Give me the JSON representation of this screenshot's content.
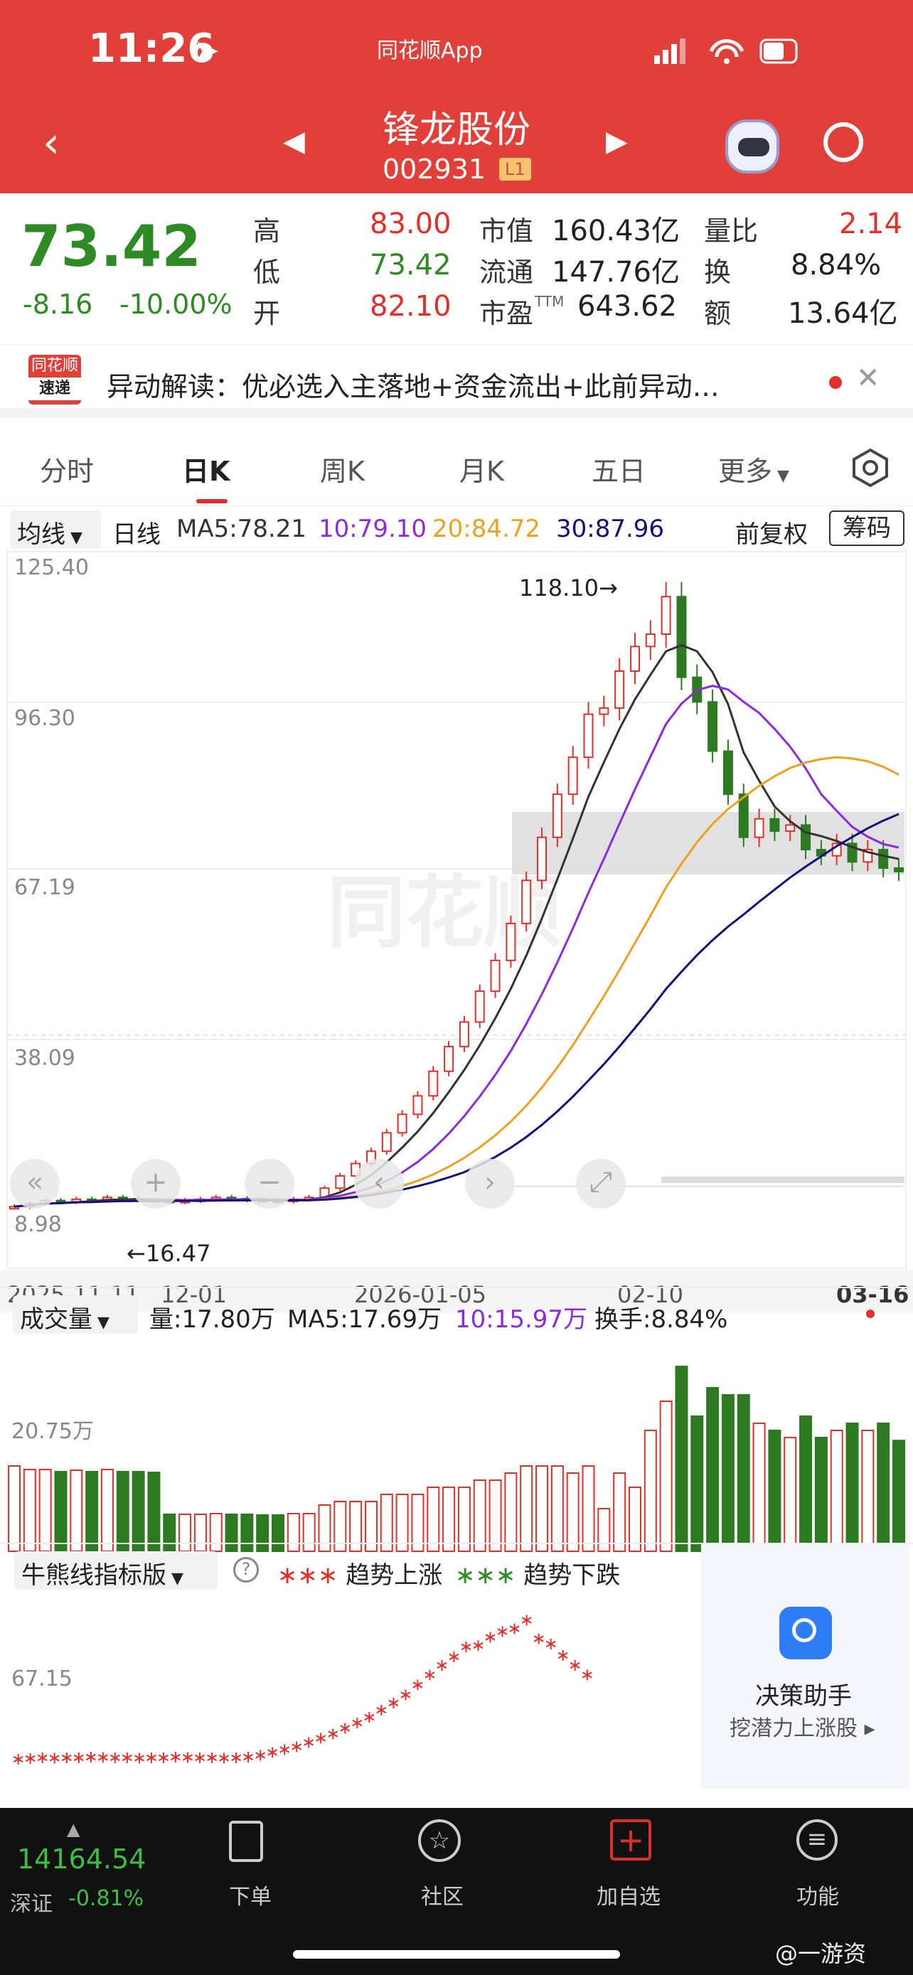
{
  "status_bar": {
    "time": "11:26",
    "app_name": "同花顺App"
  },
  "header": {
    "stock_name": "锋龙股份",
    "stock_code": "002931",
    "level": "L1"
  },
  "quote": {
    "price": "73.42",
    "change": "-8.16",
    "change_pct": "-10.00%",
    "high_label": "高",
    "high": "83.00",
    "low_label": "低",
    "low": "73.42",
    "open_label": "开",
    "open": "82.10",
    "mcap_label": "市值",
    "mcap": "160.43亿",
    "float_label": "流通",
    "float": "147.76亿",
    "pe_label": "市盈",
    "pe_sup": "TTM",
    "pe": "643.62",
    "vr_label": "量比",
    "vr": "2.14",
    "turnover_label": "换",
    "turnover": "8.84%",
    "amount_label": "额",
    "amount": "13.64亿"
  },
  "news": {
    "brand_top": "同花顺",
    "brand_bottom": "速递",
    "text": "异动解读：优必选入主落地+资金流出+此前异动…"
  },
  "tabs": [
    "分时",
    "日K",
    "周K",
    "月K",
    "五日",
    "更多"
  ],
  "kline": {
    "indicator_select": "均线",
    "period": "日线",
    "ma5": "MA5:78.21",
    "ma10": "10:79.10",
    "ma20": "20:84.72",
    "ma30": "30:87.96",
    "adjust": "前复权",
    "chip": "筹码",
    "y_ticks": [
      "125.40",
      "96.30",
      "67.19",
      "38.09",
      "8.98"
    ],
    "high_mark": "118.10→",
    "low_mark": "←16.47",
    "x_ticks": [
      "2025-11-11",
      "12-01",
      "2026-01-05",
      "02-10",
      "03-16"
    ]
  },
  "volume": {
    "select": "成交量",
    "vol": "量:17.80万",
    "ma5": "MA5:17.69万",
    "ma10": "10:15.97万",
    "turnover": "换手:8.84%",
    "y_tick": "20.75万"
  },
  "bull_bear": {
    "select": "牛熊线指标版",
    "up": "趋势上涨",
    "down": "趋势下跌",
    "y_tick": "67.15",
    "assistant_title": "决策助手",
    "assistant_sub": "挖潜力上涨股"
  },
  "bottom": {
    "index_value": "14164.54",
    "index_name": "深证",
    "index_change": "-0.81%",
    "nav": [
      "下单",
      "社区",
      "加自选",
      "功能"
    ],
    "watermark": "@一游资"
  },
  "colors": {
    "header": "#e1403a",
    "up": "#e1302a",
    "down": "#2e7a23",
    "ma5": "#333333",
    "ma10": "#8a2be2",
    "ma20": "#f0a020",
    "ma30": "#10107a"
  },
  "chart_data": {
    "type": "candlestick",
    "x_range": [
      "2025-11-11",
      "2026-03-16"
    ],
    "y_range": [
      8.98,
      125.4
    ],
    "closes": [
      19,
      19.5,
      20,
      19.8,
      20.2,
      20,
      20.5,
      20.3,
      20.1,
      20,
      19.8,
      20,
      20.2,
      20.5,
      20.3,
      20.1,
      20,
      19.9,
      20.2,
      20.5,
      22,
      24,
      26,
      28,
      31,
      34,
      37,
      41,
      45,
      49,
      54,
      59,
      65,
      72,
      79,
      86,
      92,
      99,
      100,
      106,
      110,
      112,
      118.1,
      105,
      101,
      93,
      86,
      79,
      82,
      80,
      81,
      77,
      76,
      78,
      75,
      77,
      74,
      73.42
    ]
  }
}
